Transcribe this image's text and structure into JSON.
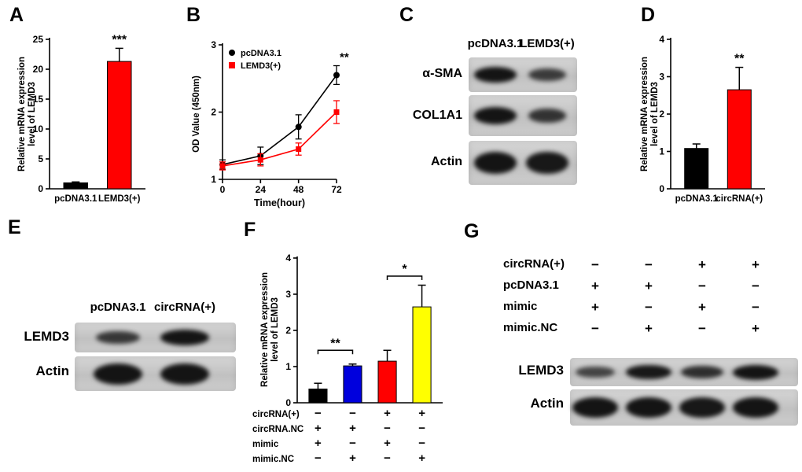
{
  "panels": {
    "A": {
      "label": "A"
    },
    "B": {
      "label": "B"
    },
    "C": {
      "label": "C"
    },
    "D": {
      "label": "D"
    },
    "E": {
      "label": "E"
    },
    "F": {
      "label": "F"
    },
    "G": {
      "label": "G"
    }
  },
  "chart_data": [
    {
      "id": "A",
      "type": "bar",
      "ylabel": "Relative mRNA expression\nlevel of LEMD3",
      "categories": [
        "pcDNA3.1",
        "LEMD3(+)"
      ],
      "values": [
        1.0,
        21.3
      ],
      "errors": [
        0.15,
        2.2
      ],
      "colors": [
        "#000000",
        "#ff0000"
      ],
      "ylim": [
        0,
        25
      ],
      "yticks": [
        0,
        5,
        10,
        15,
        20,
        25
      ],
      "significance": [
        {
          "label": "***",
          "bar": 1
        }
      ]
    },
    {
      "id": "B",
      "type": "line",
      "ylabel": "OD Value (450nm)",
      "xlabel": "Time(hour)",
      "x": [
        0,
        24,
        48,
        72
      ],
      "series": [
        {
          "name": "pcDNA3.1",
          "color": "#000000",
          "marker": "circle",
          "values": [
            1.22,
            1.35,
            1.78,
            2.55
          ],
          "errors": [
            0.07,
            0.13,
            0.18,
            0.14
          ]
        },
        {
          "name": "LEMD3(+)",
          "color": "#ff0000",
          "marker": "square",
          "values": [
            1.2,
            1.29,
            1.45,
            2.0
          ],
          "errors": [
            0.06,
            0.09,
            0.09,
            0.17
          ]
        }
      ],
      "ylim": [
        1,
        3
      ],
      "yticks": [
        1,
        2,
        3
      ],
      "significance": "**",
      "legend_position": "top-left"
    },
    {
      "id": "D",
      "type": "bar",
      "ylabel": "Relative mRNA expression\nlevel of LEMD3",
      "categories": [
        "pcDNA3.1",
        "circRNA(+)"
      ],
      "values": [
        1.08,
        2.65
      ],
      "errors": [
        0.12,
        0.6
      ],
      "colors": [
        "#000000",
        "#ff0000"
      ],
      "ylim": [
        0,
        4
      ],
      "yticks": [
        0,
        1,
        2,
        3,
        4
      ],
      "significance": [
        {
          "label": "**",
          "bar": 1
        }
      ]
    },
    {
      "id": "F",
      "type": "bar",
      "ylabel": "Relative mRNA expression\nlevel of LEMD3",
      "values": [
        0.38,
        1.02,
        1.15,
        2.65
      ],
      "errors": [
        0.16,
        0.05,
        0.3,
        0.6
      ],
      "colors": [
        "#000000",
        "#0000dd",
        "#ff0000",
        "#ffff00"
      ],
      "ylim": [
        0,
        4
      ],
      "yticks": [
        0,
        1,
        2,
        3,
        4
      ],
      "significance": [
        {
          "label": "**",
          "from": 0,
          "to": 1,
          "y": 1.45
        },
        {
          "label": "*",
          "from": 2,
          "to": 3,
          "y": 3.5
        }
      ],
      "condition_rows": [
        {
          "label": "circRNA(+)",
          "values": [
            "−",
            "−",
            "+",
            "+"
          ]
        },
        {
          "label": "circRNA.NC",
          "values": [
            "+",
            "+",
            "−",
            "−"
          ]
        },
        {
          "label": "mimic",
          "values": [
            "+",
            "−",
            "+",
            "−"
          ]
        },
        {
          "label": "mimic.NC",
          "values": [
            "−",
            "+",
            "−",
            "+"
          ]
        }
      ]
    }
  ],
  "blots": {
    "C": {
      "headers": [
        "pcDNA3.1",
        "LEMD3(+)"
      ],
      "rows": [
        {
          "label": "α-SMA",
          "bands": [
            1.0,
            0.55
          ]
        },
        {
          "label": "COL1A1",
          "bands": [
            1.0,
            0.65
          ]
        },
        {
          "label": "Actin",
          "bands": [
            1.0,
            0.95
          ]
        }
      ]
    },
    "E": {
      "headers": [
        "pcDNA3.1",
        "circRNA(+)"
      ],
      "rows": [
        {
          "label": "LEMD3",
          "bands": [
            0.6,
            1.0
          ]
        },
        {
          "label": "Actin",
          "bands": [
            1.0,
            1.0
          ]
        }
      ]
    },
    "G": {
      "condition_rows": [
        {
          "label": "circRNA(+)",
          "values": [
            "−",
            "−",
            "+",
            "+"
          ]
        },
        {
          "label": "pcDNA3.1",
          "values": [
            "+",
            "+",
            "−",
            "−"
          ]
        },
        {
          "label": "mimic",
          "values": [
            "+",
            "−",
            "+",
            "−"
          ]
        },
        {
          "label": "mimic.NC",
          "values": [
            "−",
            "+",
            "−",
            "+"
          ]
        }
      ],
      "rows": [
        {
          "label": "LEMD3",
          "bands": [
            0.45,
            0.95,
            0.7,
            1.0
          ]
        },
        {
          "label": "Actin",
          "bands": [
            1.0,
            1.0,
            0.95,
            1.0
          ]
        }
      ]
    }
  }
}
